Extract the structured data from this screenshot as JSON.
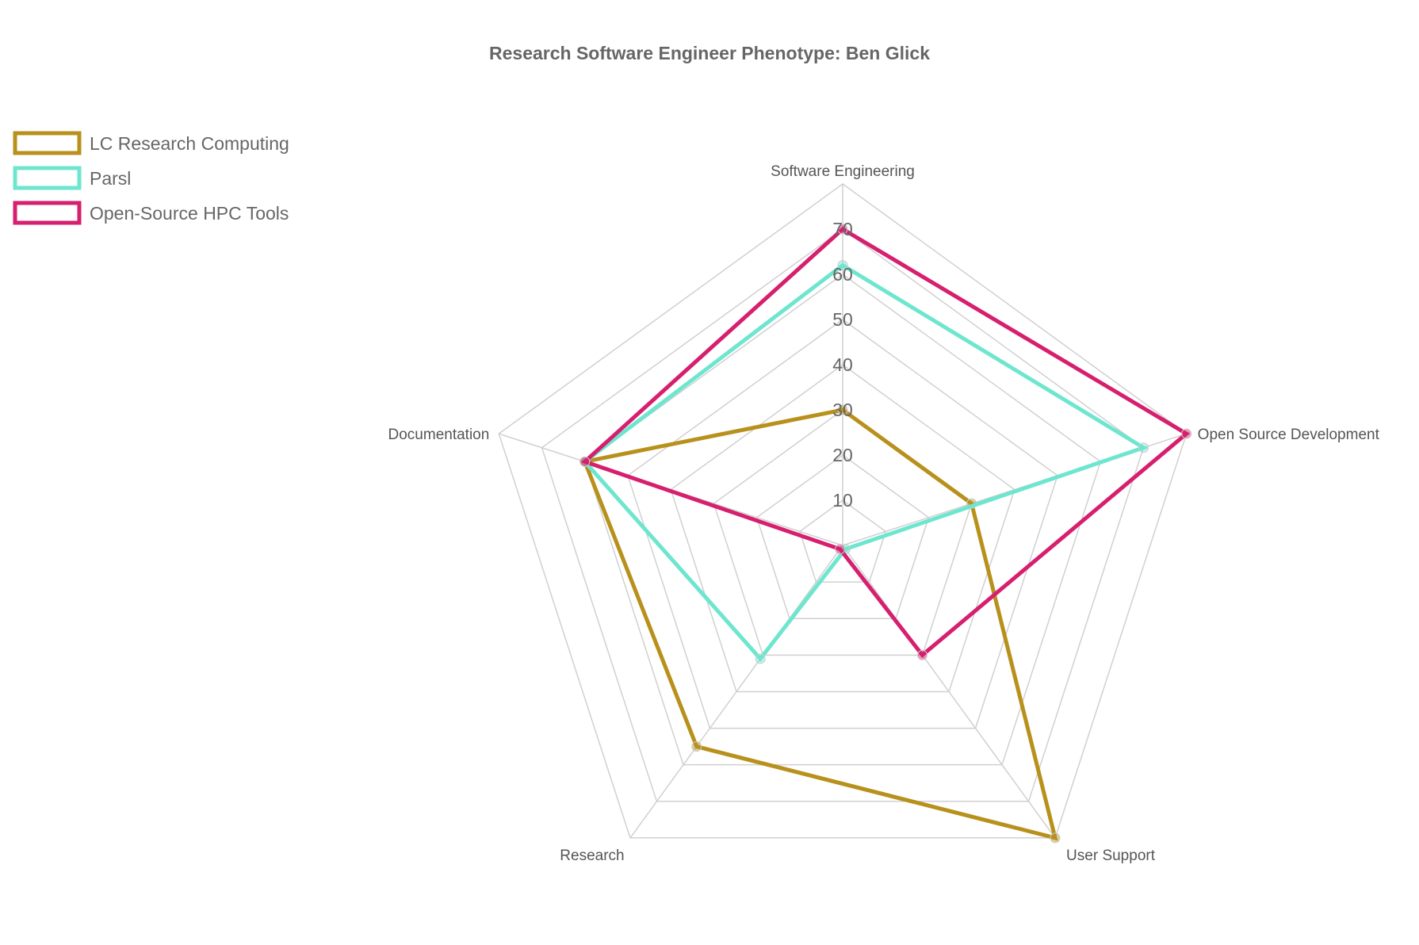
{
  "chart_data": {
    "type": "radar",
    "title": "Research Software Engineer Phenotype: Ben Glick",
    "axes": [
      "Software Engineering",
      "Open Source Development",
      "User Support",
      "Research",
      "Documentation"
    ],
    "r_ticks": [
      10,
      20,
      30,
      40,
      50,
      60,
      70
    ],
    "r_range": [
      0,
      80
    ],
    "grid": true,
    "legend_position": "top-left",
    "series": [
      {
        "name": "LC Research Computing",
        "color": "#b8901c",
        "values": [
          30,
          30,
          80,
          55,
          60
        ]
      },
      {
        "name": "Parsl",
        "color": "#6ee6cf",
        "values": [
          62,
          70,
          1,
          31,
          60
        ]
      },
      {
        "name": "Open-Source HPC Tools",
        "color": "#d61f6e",
        "values": [
          70,
          80,
          30,
          1,
          60
        ]
      }
    ]
  }
}
